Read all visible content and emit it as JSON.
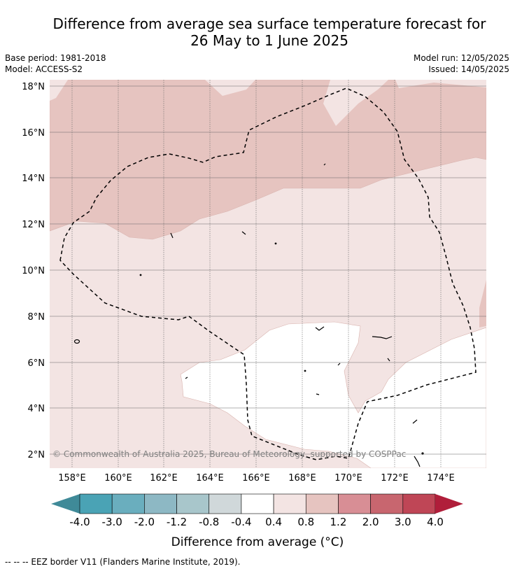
{
  "title_line1": "Difference from average sea surface temperature forecast for",
  "title_line2": "26 May to 1 June 2025",
  "base_period": "Base period: 1981-2018",
  "model": "Model: ACCESS-S2",
  "model_run": "Model run: 12/05/2025",
  "issued": "Issued: 14/05/2025",
  "copyright": "© Commonwealth of Australia 2025, Bureau of Meteorology, supported by COSPPac",
  "lat_labels": [
    "18°N",
    "16°N",
    "14°N",
    "12°N",
    "10°N",
    "8°N",
    "6°N",
    "4°N",
    "2°N"
  ],
  "lon_labels": [
    "158°E",
    "160°E",
    "162°E",
    "164°E",
    "166°E",
    "168°E",
    "170°E",
    "172°E",
    "174°E"
  ],
  "colorbar": {
    "label": "Difference from average (°C)",
    "ticks": [
      "-4.0",
      "-3.0",
      "-2.0",
      "-1.2",
      "-0.8",
      "-0.4",
      "0.4",
      "0.8",
      "1.2",
      "2.0",
      "3.0",
      "4.0"
    ],
    "colors": [
      "#3f8a98",
      "#4aa3b5",
      "#6aaebe",
      "#8db8c4",
      "#a8c6cb",
      "#d0d8da",
      "#ffffff",
      "#f3e4e3",
      "#e6c4c0",
      "#d88e95",
      "#c8666f",
      "#bf4656",
      "#b01e3a"
    ]
  },
  "legend_note": "--  --  -- EEZ border V11 (Flanders Marine Institute, 2019)."
}
